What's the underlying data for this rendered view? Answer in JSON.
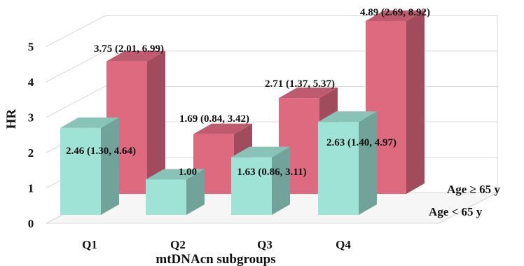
{
  "chart_data": {
    "type": "bar",
    "title": "",
    "xlabel": "mtDNAcn subgroups",
    "ylabel": "HR",
    "ylim": [
      0,
      5
    ],
    "yticks": [
      "0",
      "1",
      "2",
      "3",
      "4",
      "5"
    ],
    "categories": [
      "Q1",
      "Q2",
      "Q3",
      "Q4"
    ],
    "grid": true,
    "projection": "3d",
    "series": [
      {
        "name": "Age < 65 y",
        "color": "#9fe3d6",
        "values": [
          2.46,
          1.0,
          1.63,
          2.63
        ],
        "labels": [
          "2.46 (1.30, 4.64)",
          "1.00",
          "1.63 (0.86, 3.11)",
          "2.63 (1.40, 4.97)"
        ]
      },
      {
        "name": "Age ≥ 65 y",
        "color": "#de6a80",
        "values": [
          3.75,
          1.69,
          2.71,
          4.89
        ],
        "labels": [
          "3.75 (2.01, 6.99)",
          "1.69 (0.84, 3.42)",
          "2.71 (1.37, 5.37)",
          "4.89 (2.69, 8.92)"
        ]
      }
    ]
  }
}
